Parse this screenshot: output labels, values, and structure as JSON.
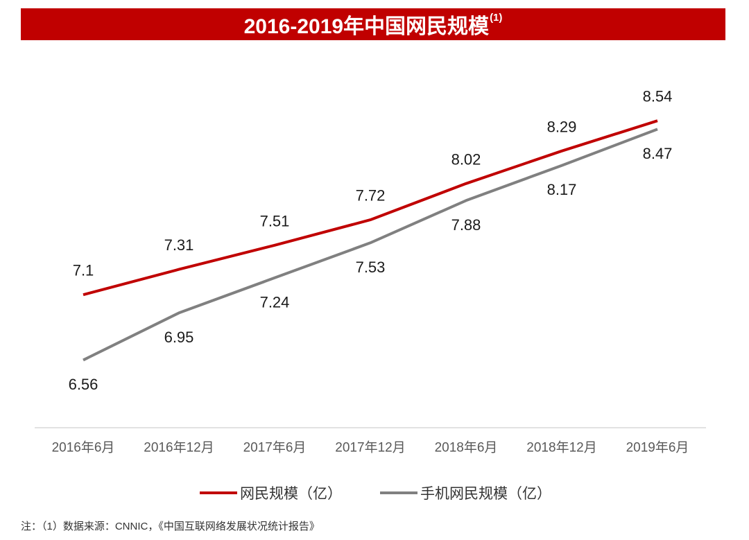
{
  "colors": {
    "title_bg": "#C00000",
    "title_text": "#FFFFFF",
    "axis_line": "#D9D9D9"
  },
  "chart_data": {
    "type": "line",
    "title": "2016-2019年中国网民规模",
    "title_note": "(1)",
    "xlabel": "",
    "ylabel": "",
    "categories": [
      "2016年6月",
      "2016年12月",
      "2017年6月",
      "2017年12月",
      "2018年6月",
      "2018年12月",
      "2019年6月"
    ],
    "series": [
      {
        "name": "网民规模（亿）",
        "color": "#C00000",
        "values": [
          7.1,
          7.31,
          7.51,
          7.72,
          8.02,
          8.29,
          8.54
        ]
      },
      {
        "name": "手机网民规模（亿）",
        "color": "#808080",
        "values": [
          6.56,
          6.95,
          7.24,
          7.53,
          7.88,
          8.17,
          8.47
        ]
      }
    ],
    "ylim": [
      6,
      9
    ],
    "grid": false,
    "data_labels": true,
    "legend": "bottom"
  },
  "footnote": "注：（1）数据来源：CNNIC，《中国互联网络发展状况统计报告》"
}
